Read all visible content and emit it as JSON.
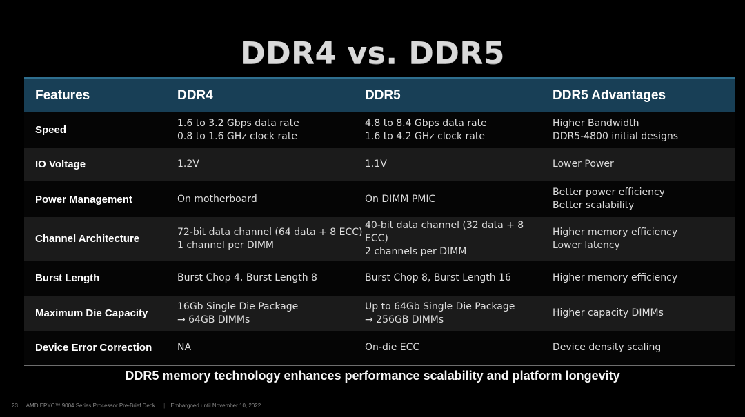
{
  "title": "DDR4 vs. DDR5",
  "table": {
    "headers": [
      "Features",
      "DDR4",
      "DDR5",
      "DDR5 Advantages"
    ],
    "rows": [
      {
        "feature": "Speed",
        "ddr4": [
          "1.6 to 3.2 Gbps data rate",
          "0.8 to 1.6 GHz clock rate"
        ],
        "ddr5": [
          "4.8 to 8.4 Gbps data rate",
          "1.6 to 4.2 GHz clock rate"
        ],
        "advantages": [
          "Higher Bandwidth",
          "DDR5-4800 initial designs"
        ]
      },
      {
        "feature": "IO Voltage",
        "ddr4": [
          "1.2V"
        ],
        "ddr5": [
          "1.1V"
        ],
        "advantages": [
          "Lower Power"
        ]
      },
      {
        "feature": "Power Management",
        "ddr4": [
          "On motherboard"
        ],
        "ddr5": [
          "On DIMM PMIC"
        ],
        "advantages": [
          "Better power efficiency",
          "Better scalability"
        ]
      },
      {
        "feature": "Channel Architecture",
        "ddr4": [
          "72-bit data channel (64 data + 8 ECC)",
          "1 channel per DIMM"
        ],
        "ddr5": [
          "40-bit data channel (32 data + 8 ECC)",
          "2 channels per DIMM"
        ],
        "advantages": [
          "Higher memory efficiency",
          "Lower latency"
        ]
      },
      {
        "feature": "Burst Length",
        "ddr4": [
          "Burst Chop 4, Burst Length 8"
        ],
        "ddr5": [
          "Burst Chop 8, Burst Length 16"
        ],
        "advantages": [
          "Higher memory efficiency"
        ]
      },
      {
        "feature": "Maximum Die Capacity",
        "ddr4": [
          "16Gb Single Die Package",
          "→ 64GB DIMMs"
        ],
        "ddr5": [
          "Up to 64Gb Single Die Package",
          "→ 256GB DIMMs"
        ],
        "advantages": [
          "Higher capacity DIMMs"
        ]
      },
      {
        "feature": "Device Error Correction",
        "ddr4": [
          "NA"
        ],
        "ddr5": [
          "On-die ECC"
        ],
        "advantages": [
          "Device density scaling"
        ]
      }
    ]
  },
  "tagline": "DDR5 memory technology enhances performance scalability and platform longevity",
  "footer": {
    "page_number": "23",
    "deck": "AMD EPYC™ 9004 Series Processor Pre-Brief Deck",
    "separator": "|",
    "embargo": "Embargoed until November 10, 2022"
  },
  "colors": {
    "header_bg": "#183f56",
    "header_top_border": "#2f6f8f",
    "row_dark": "#050505",
    "row_light": "#1b1b1b"
  }
}
